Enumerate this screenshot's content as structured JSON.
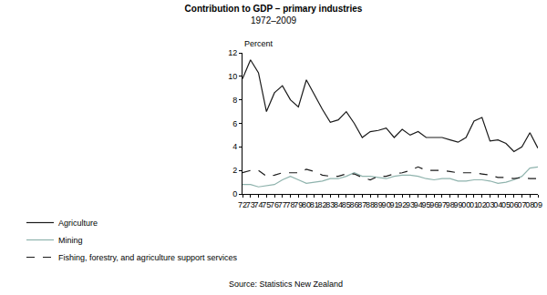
{
  "chart_data": {
    "type": "line",
    "title": "Contribution to GDP – primary industries",
    "subtitle": "1972–2009",
    "y_label": "Percent",
    "annotations": [
      "Source: Statistics New Zealand"
    ],
    "categories": [
      "72",
      "73",
      "74",
      "75",
      "76",
      "77",
      "78",
      "79",
      "80",
      "81",
      "82",
      "83",
      "84",
      "85",
      "86",
      "87",
      "88",
      "89",
      "90",
      "91",
      "92",
      "93",
      "94",
      "95",
      "96",
      "97",
      "98",
      "99",
      "00",
      "01",
      "02",
      "03",
      "04",
      "05",
      "06",
      "07",
      "08",
      "09"
    ],
    "series": [
      {
        "name": "Agriculture",
        "color": "#1a1a1a",
        "line_style": "solid",
        "values": [
          9.8,
          11.4,
          10.3,
          7.0,
          8.6,
          9.2,
          8.0,
          7.4,
          9.7,
          8.4,
          7.2,
          6.1,
          6.3,
          7.0,
          6.0,
          4.8,
          5.3,
          5.4,
          5.6,
          4.8,
          5.5,
          5.0,
          5.3,
          4.8,
          4.8,
          4.8,
          4.6,
          4.4,
          4.8,
          6.2,
          6.5,
          4.5,
          4.6,
          4.3,
          3.6,
          4.0,
          5.2,
          3.9
        ]
      },
      {
        "name": "Mining",
        "color": "#8fb3ad",
        "line_style": "solid",
        "values": [
          0.8,
          0.8,
          0.6,
          0.7,
          0.8,
          1.2,
          1.5,
          1.2,
          0.9,
          1.0,
          1.1,
          1.3,
          1.3,
          1.5,
          1.8,
          1.5,
          1.5,
          1.4,
          1.3,
          1.5,
          1.6,
          1.6,
          1.5,
          1.3,
          1.2,
          1.3,
          1.3,
          1.1,
          1.1,
          1.2,
          1.2,
          1.1,
          0.9,
          1.0,
          1.2,
          1.5,
          2.2,
          2.3
        ]
      },
      {
        "name": "Fishing, forestry, and agriculture support services",
        "color": "#1a1a1a",
        "line_style": "dash",
        "values": [
          1.8,
          2.0,
          2.0,
          1.5,
          1.6,
          1.8,
          1.8,
          1.8,
          2.1,
          1.9,
          1.6,
          1.5,
          1.5,
          1.7,
          1.7,
          1.4,
          1.2,
          1.5,
          1.5,
          1.7,
          1.8,
          2.0,
          2.3,
          2.0,
          2.0,
          2.0,
          1.9,
          1.8,
          1.8,
          1.8,
          1.7,
          1.6,
          1.4,
          1.4,
          1.3,
          1.4,
          1.3,
          1.3
        ]
      }
    ],
    "ylim": [
      0,
      12
    ],
    "yticks": [
      0,
      2,
      4,
      6,
      8,
      10,
      12
    ],
    "grid": false,
    "legend": "bottom"
  }
}
